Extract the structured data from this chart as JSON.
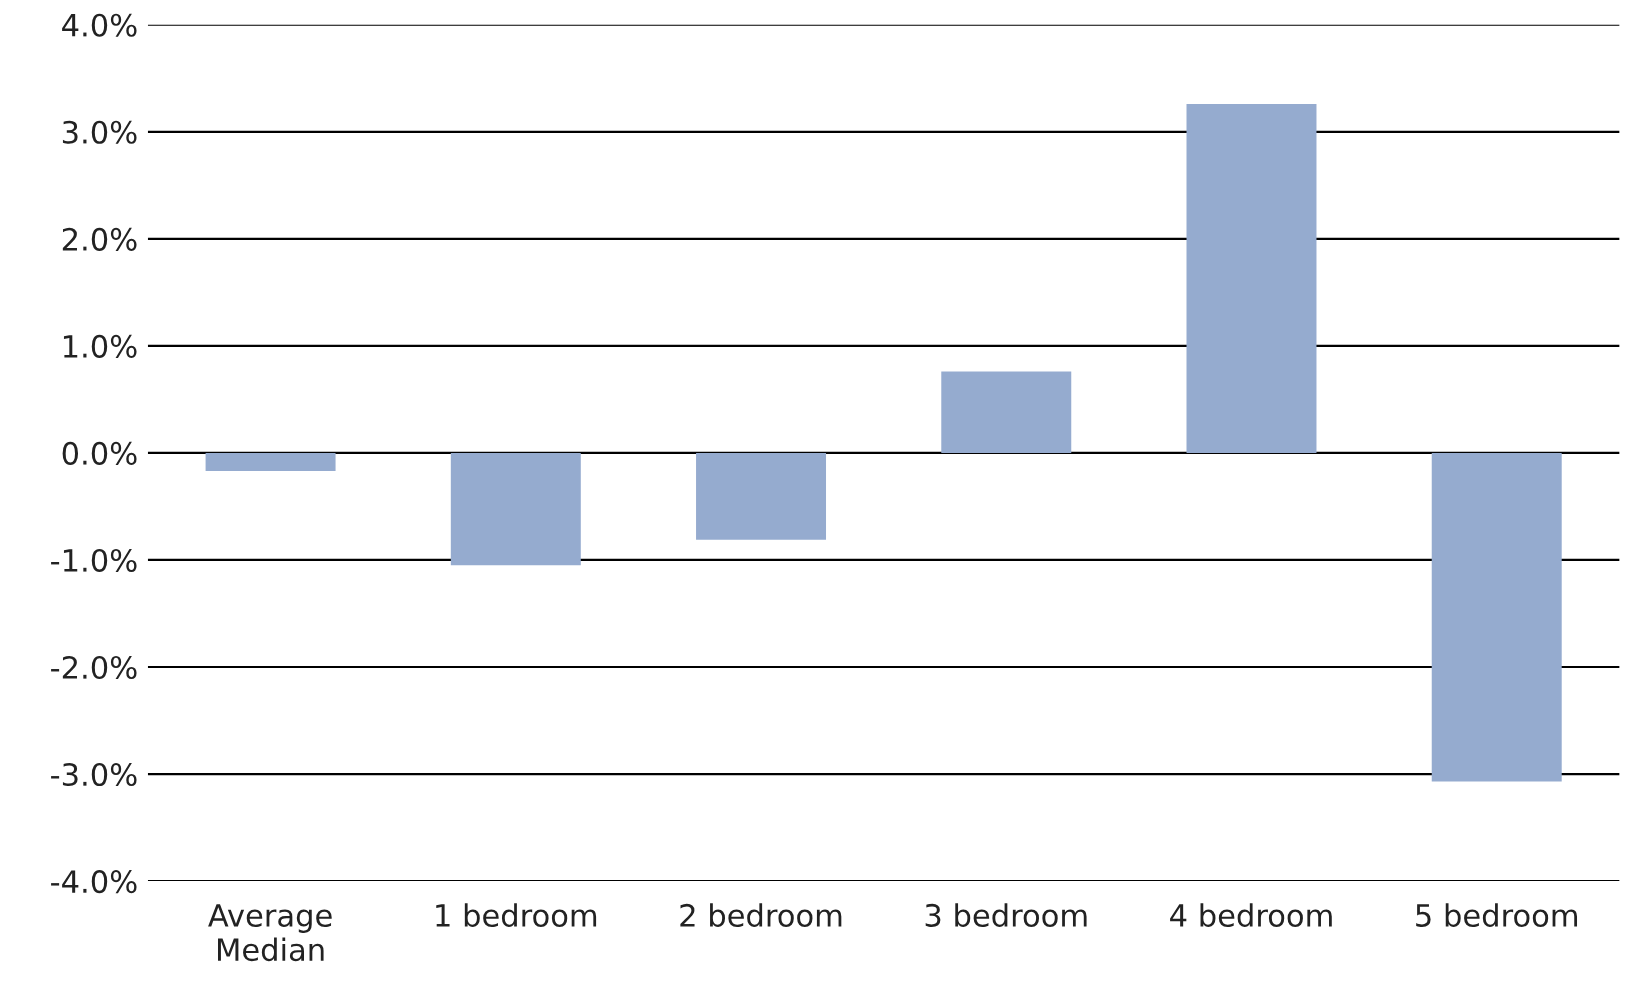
{
  "chart_data": {
    "type": "bar",
    "categories": [
      "Average\nMedian",
      "1 bedroom",
      "2 bedroom",
      "3 bedroom",
      "4 bedroom",
      "5 bedroom"
    ],
    "values": [
      -0.17,
      -1.05,
      -0.81,
      0.76,
      3.26,
      -3.07
    ],
    "color": "#95abcf",
    "ylim": [
      -4.0,
      4.0
    ],
    "yticks": [
      {
        "value": -4.0,
        "label": "-4.0%"
      },
      {
        "value": -3.0,
        "label": "-3.0%"
      },
      {
        "value": -2.0,
        "label": "-2.0%"
      },
      {
        "value": -1.0,
        "label": "-1.0%"
      },
      {
        "value": 0.0,
        "label": "0.0%"
      },
      {
        "value": 1.0,
        "label": "1.0%"
      },
      {
        "value": 2.0,
        "label": "2.0%"
      },
      {
        "value": 3.0,
        "label": "3.0%"
      },
      {
        "value": 4.0,
        "label": "4.0%"
      }
    ],
    "grid": "y",
    "legend": false
  }
}
